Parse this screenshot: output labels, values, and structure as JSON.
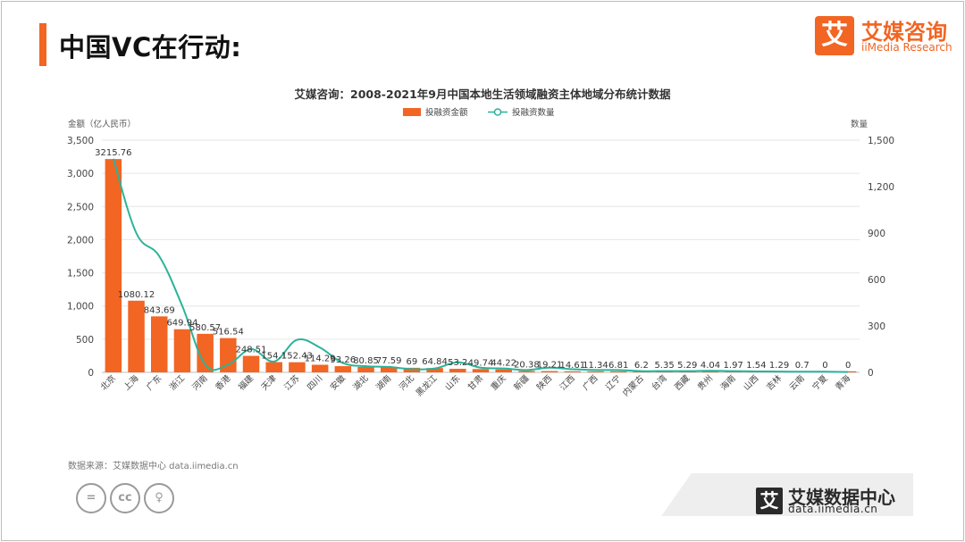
{
  "page": {
    "title": "中国VC在行动:",
    "accent_color": "#f26522"
  },
  "logo": {
    "mark": "艾",
    "name": "艾媒咨询",
    "sub": "iiMedia Research"
  },
  "source": "数据来源：艾媒数据中心 data.iimedia.cn",
  "license_icons": [
    "equals-icon",
    "cc-icon",
    "person-icon"
  ],
  "license_glyphs": [
    "=",
    "cc",
    "♀"
  ],
  "footer": {
    "mark": "艾",
    "name": "艾媒数据中心",
    "url": "data.iimedia.cn"
  },
  "chart_data": {
    "type": "bar",
    "title": "艾媒咨询：2008-2021年9月中国本地生活领域融资主体地域分布统计数据",
    "ylabel": "金额（亿人民币）",
    "y2label": "数量",
    "ylim": [
      0,
      3500
    ],
    "y2lim": [
      0,
      1500
    ],
    "yticks": [
      "0",
      "500",
      "1,000",
      "1,500",
      "2,000",
      "2,500",
      "3,000",
      "3,500"
    ],
    "y2ticks": [
      "0",
      "300",
      "600",
      "900",
      "1,200",
      "1,500"
    ],
    "legend_position": "top-center",
    "categories": [
      "北京",
      "上海",
      "广东",
      "浙江",
      "河南",
      "香港",
      "福建",
      "天津",
      "江苏",
      "四川",
      "安徽",
      "湖北",
      "湖南",
      "河北",
      "黑龙江",
      "山东",
      "甘肃",
      "重庆",
      "新疆",
      "陕西",
      "江西",
      "广西",
      "辽宁",
      "内蒙古",
      "台湾",
      "西藏",
      "贵州",
      "海南",
      "山西",
      "吉林",
      "云南",
      "宁夏",
      "青海"
    ],
    "series": [
      {
        "name": "投融资金额",
        "kind": "bar",
        "color": "#f26522",
        "values": [
          3215.76,
          1080.12,
          843.69,
          649.94,
          580.57,
          516.54,
          248.51,
          154.1,
          152.43,
          114.29,
          93.26,
          80.85,
          77.59,
          69,
          64.84,
          53.2,
          49.74,
          44.22,
          20.38,
          19.21,
          14.61,
          11.34,
          6.81,
          6.2,
          5.35,
          5.29,
          4.04,
          1.97,
          1.54,
          1.29,
          0.7,
          0,
          0
        ],
        "labels": [
          "3215.76",
          "1080.12",
          "843.69",
          "649.94",
          "580.57",
          "516.54",
          "248.51",
          "154.1",
          "152.43",
          "114.29",
          "93.26",
          "80.85",
          "77.59",
          "69",
          "64.84",
          "53.2",
          "49.74",
          "44.22",
          "20.38",
          "19.21",
          "14.61",
          "11.34",
          "6.81",
          "6.2",
          "5.35",
          "5.29",
          "4.04",
          "1.97",
          "1.54",
          "1.29",
          "0.7",
          "0",
          "0"
        ]
      },
      {
        "name": "投融资数量",
        "kind": "line",
        "axis": "right",
        "color": "#2bb39a",
        "values": [
          1380,
          900,
          750,
          430,
          50,
          50,
          150,
          70,
          210,
          160,
          60,
          40,
          35,
          20,
          25,
          65,
          30,
          25,
          15,
          30,
          20,
          15,
          15,
          8,
          8,
          8,
          10,
          8,
          6,
          5,
          4,
          4,
          2
        ]
      }
    ]
  }
}
